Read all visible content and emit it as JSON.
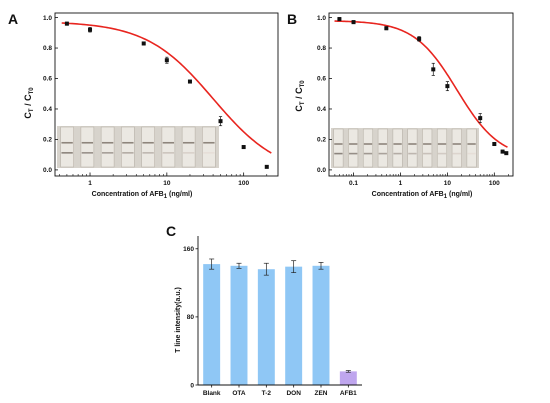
{
  "figure": {
    "panel_a": {
      "label": "A"
    },
    "panel_b": {
      "label": "B"
    },
    "panel_c": {
      "label": "C"
    }
  },
  "chart_data": [
    {
      "type": "scatter",
      "panel": "A",
      "ylabel": {
        "main": "C",
        "sub1": "T",
        "sep": " / C",
        "sub2": "T0"
      },
      "xlabel": {
        "main": "Concentration of AFB",
        "sub": "1",
        "tail": " (ng/ml)"
      },
      "xscale": "log",
      "xlim": [
        0.35,
        280
      ],
      "ylim": [
        -0.04,
        1.03
      ],
      "xticks": [
        {
          "v": 1,
          "label": "1"
        },
        {
          "v": 10,
          "label": "10"
        },
        {
          "v": 100,
          "label": "100"
        }
      ],
      "yticks": [
        {
          "v": 0.0,
          "label": "0.0"
        },
        {
          "v": 0.2,
          "label": "0.2"
        },
        {
          "v": 0.4,
          "label": "0.4"
        },
        {
          "v": 0.6,
          "label": "0.6"
        },
        {
          "v": 0.8,
          "label": "0.8"
        },
        {
          "v": 1.0,
          "label": "1.0"
        }
      ],
      "points": [
        {
          "x": 0.5,
          "y": 0.96,
          "err": 0.01
        },
        {
          "x": 1,
          "y": 0.92,
          "err": 0.015
        },
        {
          "x": 5,
          "y": 0.83,
          "err": 0.01
        },
        {
          "x": 10,
          "y": 0.72,
          "err": 0.02
        },
        {
          "x": 20,
          "y": 0.58,
          "err": 0.01
        },
        {
          "x": 50,
          "y": 0.32,
          "err": 0.03
        },
        {
          "x": 100,
          "y": 0.15,
          "err": 0.01
        },
        {
          "x": 200,
          "y": 0.02,
          "err": 0.005
        }
      ],
      "fit": {
        "top": 0.975,
        "bottom": -0.04,
        "ic50": 40,
        "hill": 1.0,
        "color": "#e8251f"
      },
      "strip_count": 8,
      "grid": false
    },
    {
      "type": "scatter",
      "panel": "B",
      "ylabel": {
        "main": "C",
        "sub1": "T",
        "sep": " / C",
        "sub2": "T0"
      },
      "xlabel": {
        "main": "Concentration of AFB",
        "sub": "1",
        "tail": " (ng/ml)"
      },
      "xscale": "log",
      "xlim": [
        0.03,
        250
      ],
      "ylim": [
        -0.04,
        1.03
      ],
      "xticks": [
        {
          "v": 0.1,
          "label": "0.1"
        },
        {
          "v": 1,
          "label": "1"
        },
        {
          "v": 10,
          "label": "10"
        },
        {
          "v": 100,
          "label": "100"
        }
      ],
      "yticks": [
        {
          "v": 0.0,
          "label": "0.0"
        },
        {
          "v": 0.2,
          "label": "0.2"
        },
        {
          "v": 0.4,
          "label": "0.4"
        },
        {
          "v": 0.6,
          "label": "0.6"
        },
        {
          "v": 0.8,
          "label": "0.8"
        },
        {
          "v": 1.0,
          "label": "1.0"
        }
      ],
      "points": [
        {
          "x": 0.05,
          "y": 0.99,
          "err": 0.01
        },
        {
          "x": 0.1,
          "y": 0.97,
          "err": 0.01
        },
        {
          "x": 0.5,
          "y": 0.93,
          "err": 0.01
        },
        {
          "x": 2.5,
          "y": 0.86,
          "err": 0.015
        },
        {
          "x": 5,
          "y": 0.66,
          "err": 0.04
        },
        {
          "x": 10,
          "y": 0.55,
          "err": 0.03
        },
        {
          "x": 50,
          "y": 0.34,
          "err": 0.03
        },
        {
          "x": 100,
          "y": 0.17,
          "err": 0.01
        },
        {
          "x": 150,
          "y": 0.12,
          "err": 0.01
        },
        {
          "x": 180,
          "y": 0.11,
          "err": 0.005
        }
      ],
      "fit": {
        "top": 0.98,
        "bottom": 0.07,
        "ic50": 16,
        "hill": 0.95,
        "color": "#e8251f"
      },
      "strip_count": 10,
      "grid": false
    },
    {
      "type": "bar",
      "panel": "C",
      "ylabel": "T line intensity(a.u.)",
      "categories": [
        "Blank",
        "OTA",
        "T-2",
        "DON",
        "ZEN",
        "AFB1"
      ],
      "values": [
        142,
        140,
        136,
        139,
        140,
        16
      ],
      "errors": [
        6,
        3,
        7,
        7,
        4,
        1
      ],
      "colors": [
        "#8fc7f5",
        "#8fc7f5",
        "#8fc7f5",
        "#8fc7f5",
        "#8fc7f5",
        "#bfa6ee"
      ],
      "ylim": [
        0,
        175
      ],
      "yticks": [
        {
          "v": 0,
          "label": "0"
        },
        {
          "v": 80,
          "label": "80"
        },
        {
          "v": 160,
          "label": "160"
        }
      ],
      "grid": false
    }
  ]
}
